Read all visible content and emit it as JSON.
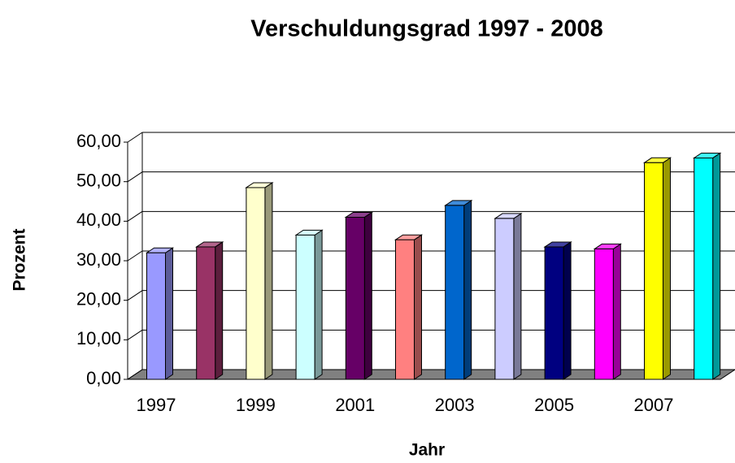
{
  "chart_data": {
    "type": "bar3d",
    "title": "Verschuldungsgrad 1997 - 2008",
    "x_label": "Jahr",
    "y_label": "Prozent",
    "categories": [
      "1997",
      null,
      "1999",
      null,
      "2001",
      null,
      "2003",
      null,
      "2005",
      null,
      "2007",
      null
    ],
    "values": [
      32.0,
      33.5,
      48.5,
      36.5,
      41.0,
      35.3,
      44.0,
      40.7,
      33.5,
      33.0,
      54.8,
      56.0
    ],
    "colors": [
      "#9999ff",
      "#993366",
      "#ffffcc",
      "#ccffff",
      "#660066",
      "#ff8080",
      "#0066cc",
      "#ccccff",
      "#000080",
      "#ff00ff",
      "#ffff00",
      "#00ffff"
    ],
    "ylim": [
      0,
      60
    ],
    "yticks": [
      {
        "value": 0,
        "label": "0,00"
      },
      {
        "value": 10,
        "label": "10,00"
      },
      {
        "value": 20,
        "label": "20,00"
      },
      {
        "value": 30,
        "label": "30,00"
      },
      {
        "value": 40,
        "label": "40,00"
      },
      {
        "value": 50,
        "label": "50,00"
      },
      {
        "value": 60,
        "label": "60,00"
      }
    ],
    "grid": true
  }
}
